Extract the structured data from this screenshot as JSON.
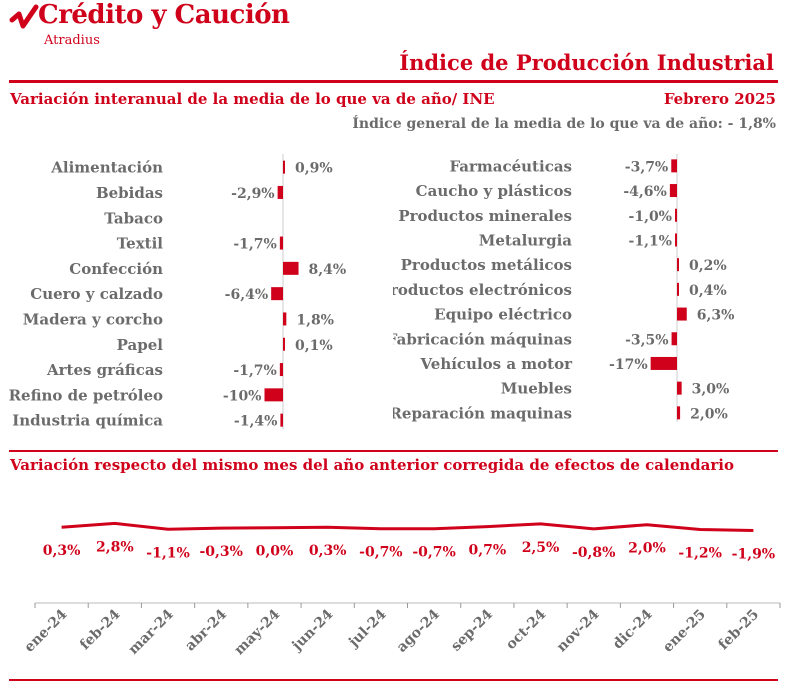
{
  "header": {
    "brand": "Crédito y Caución",
    "brand_sub": "Atradius",
    "title": "Índice de Producción Industrial"
  },
  "section1": {
    "title": "Variación interanual de la media de lo que va de año/ INE",
    "date": "Febrero 2025",
    "general_index": "Índice general de la media de lo que va de año: - 1,8%"
  },
  "section2": {
    "title": "Variación respecto del mismo mes del año anterior corregida de efectos de calendario"
  },
  "colors": {
    "accent": "#d0021b",
    "text": "#6b6b6b",
    "axis": "#888888"
  },
  "chart_data": [
    {
      "type": "bar",
      "orientation": "horizontal",
      "categories": [
        "Alimentación",
        "Bebidas",
        "Tabaco",
        "Textil",
        "Confección",
        "Cuero y calzado",
        "Madera y corcho",
        "Papel",
        "Artes gráficas",
        "Refino de petróleo",
        "Industria química"
      ],
      "values": [
        0.9,
        -2.9,
        null,
        -1.7,
        8.4,
        -6.4,
        1.8,
        0.1,
        -1.7,
        -10,
        -1.4
      ],
      "labels": [
        "0,9%",
        "-2,9%",
        "",
        "-1,7%",
        "8,4%",
        "-6,4%",
        "1,8%",
        "0,1%",
        "-1,7%",
        "-10%",
        "-1,4%"
      ]
    },
    {
      "type": "bar",
      "orientation": "horizontal",
      "categories": [
        "Farmacéuticas",
        "Caucho y plásticos",
        "Productos minerales",
        "Metalurgia",
        "Productos metálicos",
        "Productos electrónicos",
        "Equipo eléctrico",
        "Fabricación máquinas",
        "Vehículos a motor",
        "Muebles",
        "Reparación maquinas"
      ],
      "values": [
        -3.7,
        -4.6,
        -1.0,
        -1.1,
        0.2,
        0.4,
        6.3,
        -3.5,
        -17,
        3.0,
        2.0
      ],
      "labels": [
        "-3,7%",
        "-4,6%",
        "-1,0%",
        "-1,1%",
        "0,2%",
        "0,4%",
        "6,3%",
        "-3,5%",
        "-17%",
        "3,0%",
        "2,0%"
      ]
    },
    {
      "type": "line",
      "x": [
        "ene-24",
        "feb-24",
        "mar-24",
        "abr-24",
        "may-24",
        "jun-24",
        "jul-24",
        "ago-24",
        "sep-24",
        "oct-24",
        "nov-24",
        "dic-24",
        "ene-25",
        "feb-25"
      ],
      "values": [
        0.3,
        2.8,
        -1.1,
        -0.3,
        0.0,
        0.3,
        -0.7,
        -0.7,
        0.7,
        2.5,
        -0.8,
        2.0,
        -1.2,
        -1.9
      ],
      "labels": [
        "0,3%",
        "2,8%",
        "-1,1%",
        "-0,3%",
        "0,0%",
        "0,3%",
        "-0,7%",
        "-0,7%",
        "0,7%",
        "2,5%",
        "-0,8%",
        "2,0%",
        "-1,2%",
        "-1,9%"
      ],
      "ylim": [
        -50,
        25
      ]
    }
  ]
}
